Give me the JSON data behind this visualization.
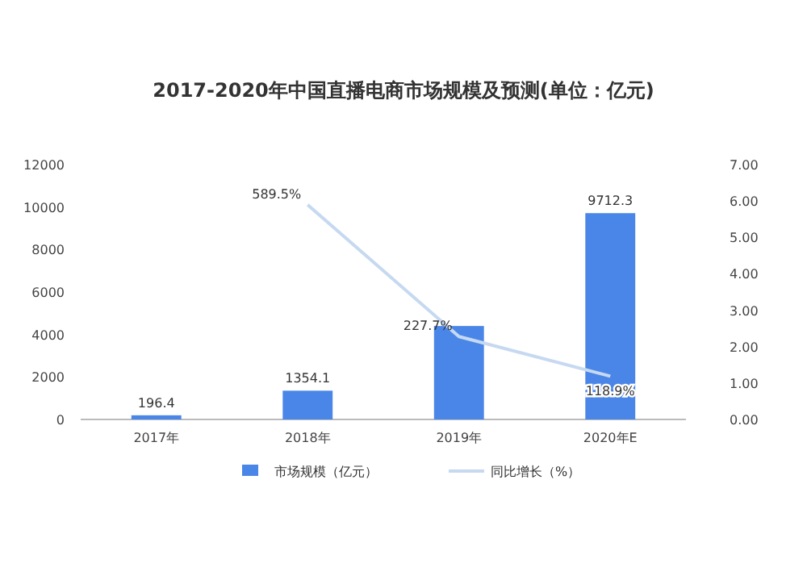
{
  "chart_data": {
    "type": "bar",
    "title": "2017-2020年中国直播电商市场规模及预测(单位：亿元)",
    "categories": [
      "2017年",
      "2018年",
      "2019年",
      "2020年E"
    ],
    "series": [
      {
        "name": "市场规模（亿元）",
        "color": "#4a86e8",
        "values": [
          196.4,
          1354.1,
          4400,
          9712.3
        ],
        "value_labels": [
          "196.4",
          "1354.1",
          null,
          "9712.3"
        ]
      },
      {
        "name": "同比增长（%）",
        "type": "line",
        "axis": "y2",
        "color": "#c6d9f1",
        "values": [
          null,
          5.895,
          2.277,
          1.189
        ],
        "value_labels": [
          null,
          "589.5%",
          "227.7%",
          "118.9%"
        ]
      }
    ],
    "ylim": [
      0,
      12000
    ],
    "yticks": [
      0,
      2000,
      4000,
      6000,
      8000,
      10000,
      12000
    ],
    "y2lim": [
      0,
      7
    ],
    "y2ticks": [
      {
        "value": 0,
        "label": "0.00"
      },
      {
        "value": 1,
        "label": "1.00"
      },
      {
        "value": 2,
        "label": "2.00"
      },
      {
        "value": 3,
        "label": "3.00"
      },
      {
        "value": 4,
        "label": "4.00"
      },
      {
        "value": 5,
        "label": "5.00"
      },
      {
        "value": 6,
        "label": "6.00"
      },
      {
        "value": 7,
        "label": "7.00"
      }
    ],
    "legend": "bottom"
  }
}
